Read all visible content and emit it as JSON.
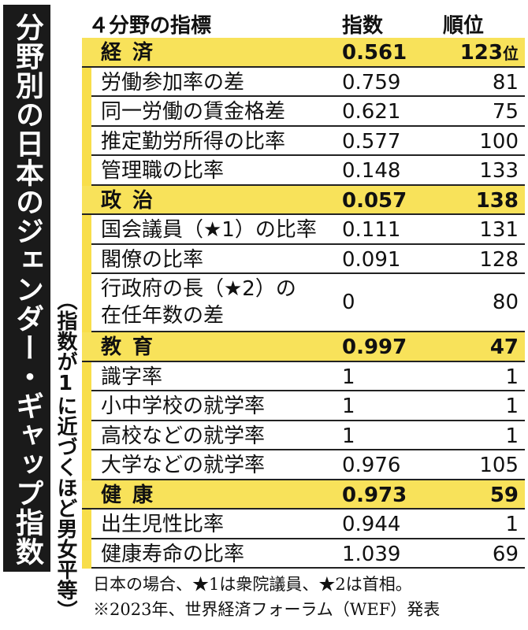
{
  "title": "分野別の日本のジェンダー・ギャップ指数",
  "subtitle": "（指数が1に近づくほど男女平等）",
  "header": {
    "indicator": "４分野の指標",
    "index": "指数",
    "rank": "順位"
  },
  "rows": [
    {
      "type": "category",
      "name": "経済",
      "value": "0.561",
      "rank": "123",
      "unit": "位"
    },
    {
      "type": "item",
      "name": "労働参加率の差",
      "value": "0.759",
      "rank": "81"
    },
    {
      "type": "item",
      "name": "同一労働の賃金格差",
      "value": "0.621",
      "rank": "75"
    },
    {
      "type": "item",
      "name": "推定勤労所得の比率",
      "value": "0.577",
      "rank": "100"
    },
    {
      "type": "item",
      "name": "管理職の比率",
      "value": "0.148",
      "rank": "133"
    },
    {
      "type": "category",
      "name": "政治",
      "value": "0.057",
      "rank": "138"
    },
    {
      "type": "item",
      "name": "国会議員（★1）の比率",
      "value": "0.111",
      "rank": "131"
    },
    {
      "type": "item",
      "name": "閣僚の比率",
      "value": "0.091",
      "rank": "128"
    },
    {
      "type": "item-tall",
      "name1": "行政府の長（★2）の",
      "name2": "在任年数の差",
      "value": "0",
      "rank": "80"
    },
    {
      "type": "category",
      "name": "教育",
      "value": "0.997",
      "rank": "47"
    },
    {
      "type": "item",
      "name": "識字率",
      "value": "1",
      "rank": "1"
    },
    {
      "type": "item",
      "name": "小中学校の就学率",
      "value": "1",
      "rank": "1"
    },
    {
      "type": "item",
      "name": "高校などの就学率",
      "value": "1",
      "rank": "1"
    },
    {
      "type": "item",
      "name": "大学などの就学率",
      "value": "0.976",
      "rank": "105"
    },
    {
      "type": "category",
      "name": "健康",
      "value": "0.973",
      "rank": "59"
    },
    {
      "type": "item",
      "name": "出生児性比率",
      "value": "0.944",
      "rank": "1"
    },
    {
      "type": "item",
      "name": "健康寿命の比率",
      "value": "1.039",
      "rank": "69"
    }
  ],
  "notes": [
    "日本の場合、★1は衆院議員、★2は首相。",
    "※2023年、世界経済フォーラム（WEF）発表"
  ],
  "colors": {
    "category_bg": "#f8e25a",
    "title_bg": "#1a1a1a"
  }
}
